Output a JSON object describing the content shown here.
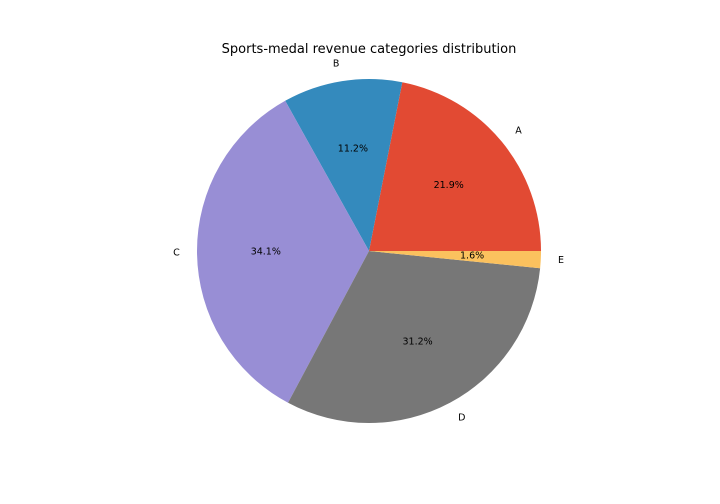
{
  "chart_data": {
    "type": "pie",
    "title": "Sports-medal revenue categories distribution",
    "categories": [
      "A",
      "B",
      "C",
      "D",
      "E"
    ],
    "values": [
      21.9,
      11.2,
      34.1,
      31.2,
      1.6
    ],
    "value_labels": [
      "21.9%",
      "11.2%",
      "34.1%",
      "31.2%",
      "1.6%"
    ],
    "colors": [
      "#E24A33",
      "#348ABD",
      "#988ED5",
      "#777777",
      "#FBC15E"
    ],
    "start_angle_deg": 0,
    "direction": "counterclockwise",
    "legend": "none"
  }
}
